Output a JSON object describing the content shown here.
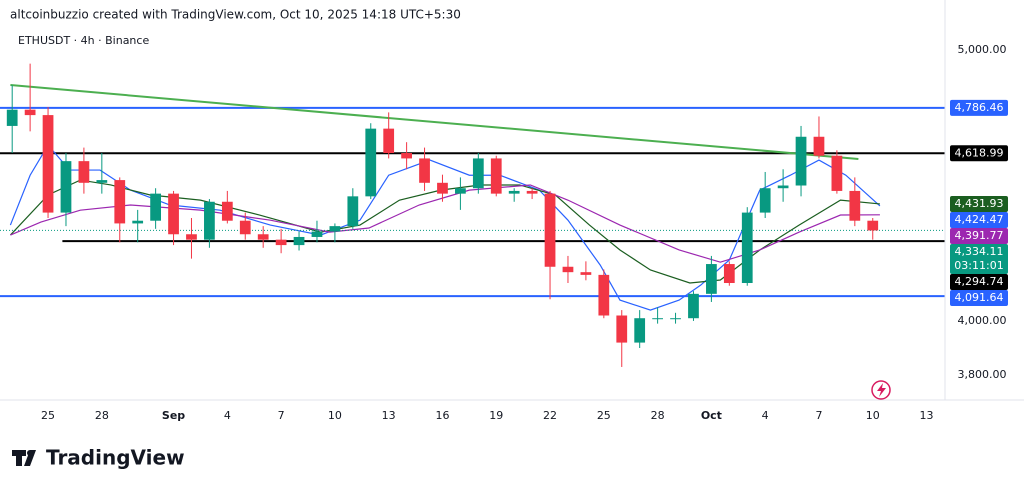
{
  "chart_data": {
    "type": "candlestick",
    "credit": "altcoinbuzzio created with TradingView.com, Oct 10, 2025 14:18 UTC+5:30",
    "title": "ETHUSDT · 4h · Binance",
    "brand": "TradingView",
    "x": [
      -2,
      -1,
      0,
      1,
      2,
      3,
      4,
      5,
      6,
      7,
      8,
      9,
      10,
      11,
      12,
      13,
      14,
      15,
      16,
      17,
      18,
      19,
      20,
      21,
      22,
      23,
      24,
      25,
      26,
      27,
      28,
      29,
      30,
      31,
      32,
      33,
      34,
      35,
      36,
      37,
      38,
      39,
      40,
      41,
      42,
      43,
      44,
      45,
      46
    ],
    "open": [
      4720,
      4780,
      4760,
      4400,
      4590,
      4510,
      4520,
      4360,
      4370,
      4470,
      4320,
      4300,
      4440,
      4370,
      4320,
      4300,
      4280,
      4310,
      4330,
      4350,
      4460,
      4710,
      4620,
      4600,
      4510,
      4470,
      4490,
      4600,
      4470,
      4480,
      4470,
      4200,
      4180,
      4170,
      4020,
      3920,
      4010,
      4010,
      4010,
      4100,
      4210,
      4140,
      4400,
      4490,
      4500,
      4680,
      4610,
      4480,
      4370
    ],
    "high": [
      4870,
      4950,
      4790,
      4620,
      4640,
      4620,
      4530,
      4410,
      4490,
      4480,
      4380,
      4450,
      4480,
      4400,
      4350,
      4340,
      4330,
      4370,
      4360,
      4490,
      4730,
      4770,
      4660,
      4640,
      4540,
      4530,
      4620,
      4610,
      4490,
      4490,
      4480,
      4240,
      4220,
      4190,
      4040,
      4040,
      4050,
      4030,
      4110,
      4240,
      4220,
      4420,
      4550,
      4560,
      4720,
      4755,
      4630,
      4530,
      4380
    ],
    "low": [
      4620,
      4700,
      4380,
      4350,
      4470,
      4470,
      4290,
      4290,
      4340,
      4280,
      4230,
      4270,
      4360,
      4300,
      4270,
      4250,
      4260,
      4290,
      4290,
      4340,
      4450,
      4600,
      4560,
      4480,
      4440,
      4410,
      4470,
      4460,
      4440,
      4450,
      4080,
      4140,
      4150,
      4010,
      3830,
      3900,
      3990,
      3990,
      4000,
      4070,
      4130,
      4130,
      4380,
      4440,
      4460,
      4600,
      4470,
      4350,
      4300
    ],
    "close": [
      4780,
      4760,
      4400,
      4590,
      4510,
      4520,
      4360,
      4370,
      4470,
      4320,
      4300,
      4440,
      4370,
      4320,
      4300,
      4280,
      4310,
      4330,
      4350,
      4460,
      4710,
      4620,
      4600,
      4510,
      4470,
      4490,
      4600,
      4470,
      4480,
      4470,
      4200,
      4180,
      4170,
      4020,
      3920,
      4010,
      4010,
      4010,
      4100,
      4210,
      4140,
      4400,
      4490,
      4500,
      4680,
      4610,
      4480,
      4370,
      4334.11
    ],
    "up_color": "#089981",
    "down_color": "#f23645",
    "lines": [
      {
        "color": "#2962ff",
        "x": [
          -2.1,
          -1,
          0,
          1.2,
          2.9,
          4.6,
          6.8,
          9.6,
          12.4,
          15.2,
          17.4,
          19,
          21.3,
          23.5,
          25.2,
          27.4,
          29,
          30.8,
          31.9,
          33.6,
          35.2,
          36.4,
          38,
          39.7,
          41.4,
          43,
          44.5,
          46.4
        ],
        "values": [
          4354,
          4538,
          4649,
          4557,
          4557,
          4483,
          4428,
          4409,
          4354,
          4317,
          4372,
          4538,
          4594,
          4538,
          4538,
          4483,
          4372,
          4206,
          4077,
          4040,
          4077,
          4132,
          4225,
          4483,
          4538,
          4594,
          4538,
          4424.47
        ],
        "value_label": "4,424.47"
      },
      {
        "color": "#1b5e20",
        "x": [
          -2.1,
          0,
          1.8,
          3.5,
          5.7,
          8.5,
          11.8,
          15.2,
          17.4,
          19.6,
          21.9,
          24.1,
          26.3,
          28.3,
          30.2,
          31.9,
          33.6,
          35.8,
          37.5,
          39.7,
          41.9,
          44.2,
          46.4
        ],
        "values": [
          4317,
          4465,
          4520,
          4502,
          4465,
          4446,
          4391,
          4328,
          4354,
          4446,
          4483,
          4502,
          4502,
          4465,
          4354,
          4262,
          4188,
          4140,
          4151,
          4262,
          4354,
          4446,
          4431.93
        ],
        "value_label": "4,431.93"
      },
      {
        "color": "#9c27b0",
        "x": [
          -2.1,
          -0.4,
          1.8,
          4.6,
          8.5,
          12.4,
          15.7,
          17.9,
          20.7,
          23.5,
          26.9,
          29,
          31.9,
          35.2,
          37.5,
          39.7,
          41.9,
          44.2,
          46.4
        ],
        "values": [
          4317,
          4365,
          4409,
          4428,
          4409,
          4372,
          4328,
          4343,
          4428,
          4483,
          4502,
          4446,
          4354,
          4262,
          4217,
          4262,
          4328,
          4391,
          4391.77
        ],
        "value_label": "4,391.77"
      }
    ],
    "levels": [
      {
        "value": 4786.46,
        "label": "4,786.46",
        "color": "#2962ff",
        "from": -2.68
      },
      {
        "value": 4618.99,
        "label": "4,618.99",
        "color": "#000000",
        "from": -2.68
      },
      {
        "value": 4294.74,
        "label": "4,294.74",
        "color": "#000000",
        "from": 0.8
      },
      {
        "value": 4091.64,
        "label": "4,091.64",
        "color": "#2962ff",
        "from": -2.68
      }
    ],
    "trendline": {
      "color": "#4caf50",
      "x": [
        -2.1,
        45.2
      ],
      "values": [
        4871,
        4598
      ]
    },
    "last_price": {
      "value": 4334.11,
      "label": "4,334.11",
      "countdown": "03:11:01",
      "color": "#089981"
    },
    "xlim": [
      -2.68,
      50.03
    ],
    "ylim": [
      3708,
      5185
    ],
    "xticks": [
      {
        "value": 0,
        "label": "25"
      },
      {
        "value": 3,
        "label": "28"
      },
      {
        "value": 7,
        "label": "Sep"
      },
      {
        "value": 10,
        "label": "4"
      },
      {
        "value": 13,
        "label": "7"
      },
      {
        "value": 16,
        "label": "10"
      },
      {
        "value": 19,
        "label": "13"
      },
      {
        "value": 22,
        "label": "16"
      },
      {
        "value": 25,
        "label": "19"
      },
      {
        "value": 28,
        "label": "22"
      },
      {
        "value": 31,
        "label": "25"
      },
      {
        "value": 34,
        "label": "28"
      },
      {
        "value": 37,
        "label": "Oct"
      },
      {
        "value": 40,
        "label": "4"
      },
      {
        "value": 43,
        "label": "7"
      },
      {
        "value": 46,
        "label": "10"
      },
      {
        "value": 49,
        "label": "13"
      }
    ],
    "yticks": [
      {
        "value": 3800,
        "label": "3,800.00"
      },
      {
        "value": 4000,
        "label": "4,000.00"
      },
      {
        "value": 5000,
        "label": "5,000.00"
      }
    ]
  }
}
